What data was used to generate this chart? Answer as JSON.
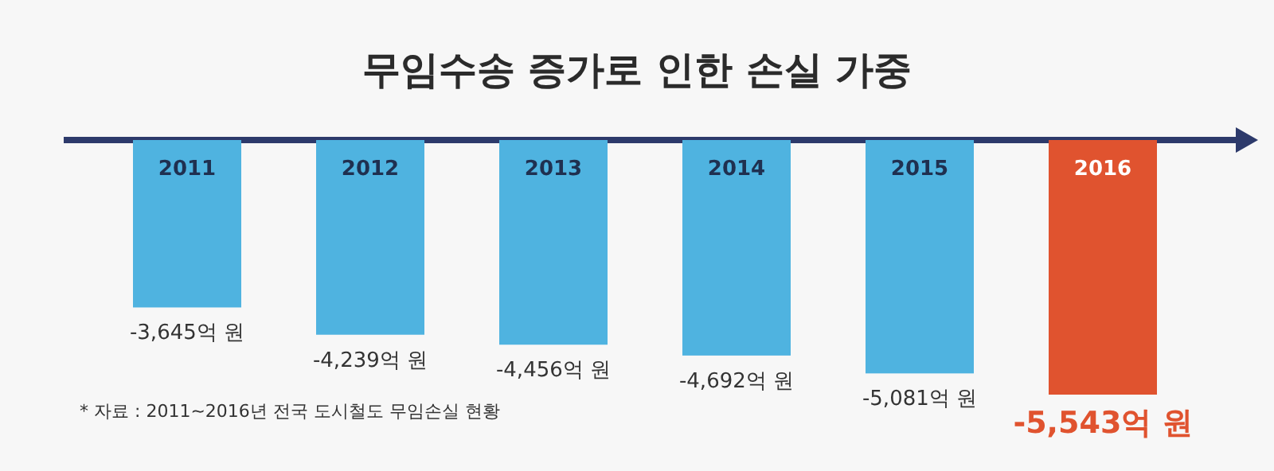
{
  "chart_data": {
    "type": "bar",
    "title": "무임수송 증가로 인한 손실 가중",
    "categories": [
      "2011",
      "2012",
      "2013",
      "2014",
      "2015",
      "2016"
    ],
    "values": [
      -3645,
      -4239,
      -4456,
      -4692,
      -5081,
      -5543
    ],
    "colors": [
      "#4fb3e0",
      "#4fb3e0",
      "#4fb3e0",
      "#4fb3e0",
      "#4fb3e0",
      "#e0532f"
    ],
    "value_labels": [
      "-3,645억 원",
      "-4,239억 원",
      "-4,456억 원",
      "-4,692억 원",
      "-5,081억 원",
      "-5,543억 원"
    ],
    "annotations": [
      "* 자료 : 2011~2016년 전국 도시철도 무임손실 현황"
    ]
  }
}
